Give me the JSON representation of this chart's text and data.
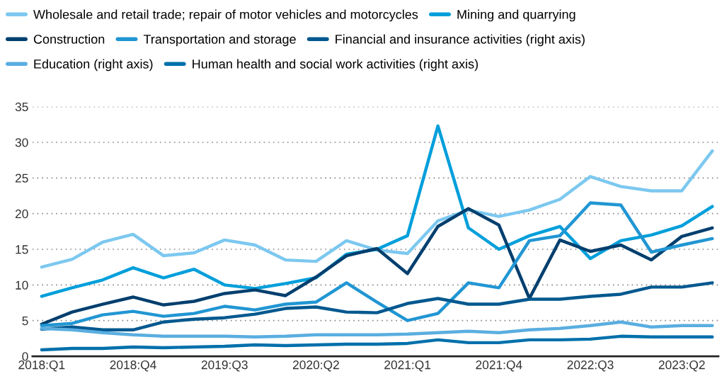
{
  "chart_data": {
    "type": "line",
    "categories": [
      "2018:Q1",
      null,
      null,
      "2018:Q4",
      null,
      null,
      "2019:Q3",
      null,
      null,
      "2020:Q2",
      null,
      null,
      "2021:Q1",
      null,
      null,
      "2021:Q4",
      null,
      null,
      "2022:Q3",
      null,
      null,
      "2023:Q2",
      null
    ],
    "series": [
      {
        "name": "Wholesale and retail trade; repair of motor vehicles and motorcycles",
        "color": "#7cc8f0",
        "values": [
          12.5,
          13.6,
          16,
          17.1,
          14.1,
          14.5,
          16.3,
          15.6,
          13.5,
          13.3,
          16.2,
          14.9,
          14.4,
          19,
          20.5,
          19.6,
          20.5,
          22,
          25.2,
          23.8,
          23.2,
          23.2,
          28.8
        ]
      },
      {
        "name": "Mining and quarrying",
        "color": "#009fdb",
        "values": [
          8.4,
          9.6,
          10.7,
          12.4,
          11,
          12.2,
          10,
          9.5,
          10.2,
          11,
          14.3,
          15,
          16.9,
          32.3,
          18,
          15,
          16.9,
          18.2,
          13.7,
          16.2,
          17,
          18.3,
          21
        ]
      },
      {
        "name": "Construction",
        "color": "#003f6e",
        "values": [
          4.5,
          6.2,
          7.3,
          8.3,
          7.2,
          7.7,
          8.8,
          9.3,
          8.5,
          11.1,
          14.1,
          15.1,
          11.6,
          18.2,
          20.7,
          18.4,
          8.1,
          16.3,
          14.7,
          15.6,
          13.5,
          16.8,
          18
        ]
      },
      {
        "name": "Transportation and storage",
        "color": "#2196d3",
        "values": [
          4.3,
          4.6,
          5.8,
          6.3,
          5.6,
          6,
          7,
          6.5,
          7.3,
          7.6,
          10.3,
          7.6,
          5,
          6,
          10.3,
          9.6,
          16.2,
          16.9,
          21.5,
          21.2,
          14.6,
          15.6,
          16.5
        ]
      },
      {
        "name": "Financial and insurance activities (right axis)",
        "color": "#00588f",
        "values": [
          3.8,
          4.1,
          3.7,
          3.7,
          4.8,
          5.2,
          5.4,
          5.9,
          6.7,
          6.9,
          6.2,
          6.1,
          7.4,
          8.1,
          7.3,
          7.3,
          8,
          8,
          8.4,
          8.7,
          9.7,
          9.7,
          10.3
        ]
      },
      {
        "name": "Education (right axis)",
        "color": "#5aaee0",
        "values": [
          3.9,
          3.7,
          3.3,
          3.0,
          2.8,
          2.8,
          2.8,
          2.7,
          2.8,
          3.0,
          3.0,
          3.0,
          3.1,
          3.3,
          3.5,
          3.3,
          3.7,
          3.9,
          4.3,
          4.8,
          4.1,
          4.3,
          4.3
        ]
      },
      {
        "name": "Human health and social work activities (right axis)",
        "color": "#0070ab",
        "values": [
          0.9,
          1.1,
          1.1,
          1.3,
          1.2,
          1.3,
          1.4,
          1.6,
          1.5,
          1.6,
          1.7,
          1.7,
          1.8,
          2.3,
          1.9,
          1.9,
          2.3,
          2.3,
          2.4,
          2.8,
          2.7,
          2.7,
          2.7
        ]
      }
    ],
    "ylim": [
      0,
      35
    ],
    "yticks": [
      0,
      5,
      10,
      15,
      20,
      25,
      30,
      35
    ],
    "grid": "y",
    "legend": "top",
    "marker": "none",
    "line_style": "solid"
  }
}
